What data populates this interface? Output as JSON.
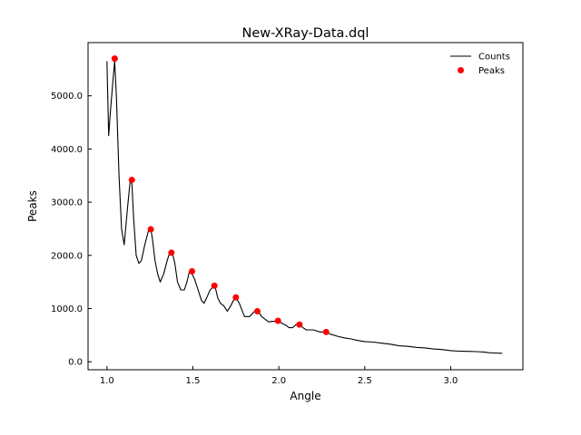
{
  "chart_data": {
    "type": "line",
    "title": "New-XRay-Data.dql",
    "xlabel": "Angle",
    "ylabel": "Peaks",
    "xlim": [
      0.89,
      3.42
    ],
    "ylim": [
      -150,
      6000
    ],
    "xticks": [
      1.0,
      1.5,
      2.0,
      2.5,
      3.0
    ],
    "xtick_labels": [
      "1.0",
      "1.5",
      "2.0",
      "2.5",
      "3.0"
    ],
    "yticks": [
      0,
      1000,
      2000,
      3000,
      4000,
      5000
    ],
    "ytick_labels": [
      "0.0",
      "1000.0",
      "2000.0",
      "3000.0",
      "4000.0",
      "5000.0"
    ],
    "grid": false,
    "legend_position": "top-right",
    "series": [
      {
        "name": "Counts",
        "kind": "line",
        "color": "#000000",
        "x": [
          1.0,
          1.01,
          1.02,
          1.035,
          1.045,
          1.055,
          1.07,
          1.085,
          1.1,
          1.12,
          1.135,
          1.145,
          1.155,
          1.17,
          1.185,
          1.2,
          1.22,
          1.24,
          1.255,
          1.265,
          1.28,
          1.295,
          1.31,
          1.33,
          1.35,
          1.365,
          1.38,
          1.395,
          1.41,
          1.43,
          1.45,
          1.465,
          1.48,
          1.495,
          1.51,
          1.53,
          1.55,
          1.565,
          1.58,
          1.6,
          1.615,
          1.63,
          1.645,
          1.66,
          1.68,
          1.7,
          1.72,
          1.735,
          1.75,
          1.77,
          1.8,
          1.83,
          1.86,
          1.88,
          1.9,
          1.92,
          1.94,
          1.96,
          1.98,
          2.0,
          2.02,
          2.04,
          2.06,
          2.08,
          2.1,
          2.12,
          2.14,
          2.16,
          2.2,
          2.24,
          2.27,
          2.3,
          2.34,
          2.38,
          2.42,
          2.46,
          2.5,
          2.55,
          2.6,
          2.65,
          2.7,
          2.75,
          2.8,
          2.85,
          2.9,
          2.95,
          3.0,
          3.05,
          3.1,
          3.15,
          3.2,
          3.22,
          3.25,
          3.3
        ],
        "y": [
          5650,
          4250,
          4700,
          5300,
          5650,
          5000,
          3500,
          2500,
          2200,
          2900,
          3400,
          3350,
          2700,
          2000,
          1850,
          1900,
          2200,
          2450,
          2500,
          2300,
          1900,
          1650,
          1500,
          1650,
          1900,
          2050,
          2050,
          1850,
          1500,
          1350,
          1350,
          1500,
          1700,
          1650,
          1550,
          1350,
          1150,
          1100,
          1200,
          1350,
          1400,
          1400,
          1200,
          1100,
          1050,
          950,
          1050,
          1150,
          1200,
          1100,
          850,
          850,
          950,
          950,
          850,
          800,
          750,
          760,
          760,
          760,
          720,
          690,
          640,
          640,
          700,
          700,
          640,
          600,
          600,
          560,
          560,
          520,
          480,
          450,
          430,
          400,
          380,
          370,
          350,
          330,
          300,
          290,
          270,
          260,
          240,
          230,
          210,
          200,
          195,
          190,
          180,
          170,
          165,
          160
        ]
      },
      {
        "name": "Peaks",
        "kind": "scatter",
        "color": "#ff0000",
        "x": [
          1.045,
          1.145,
          1.255,
          1.375,
          1.495,
          1.625,
          1.75,
          1.875,
          1.995,
          2.12,
          2.275
        ],
        "y": [
          5700,
          3420,
          2490,
          2050,
          1700,
          1430,
          1210,
          950,
          770,
          700,
          560
        ]
      }
    ]
  }
}
